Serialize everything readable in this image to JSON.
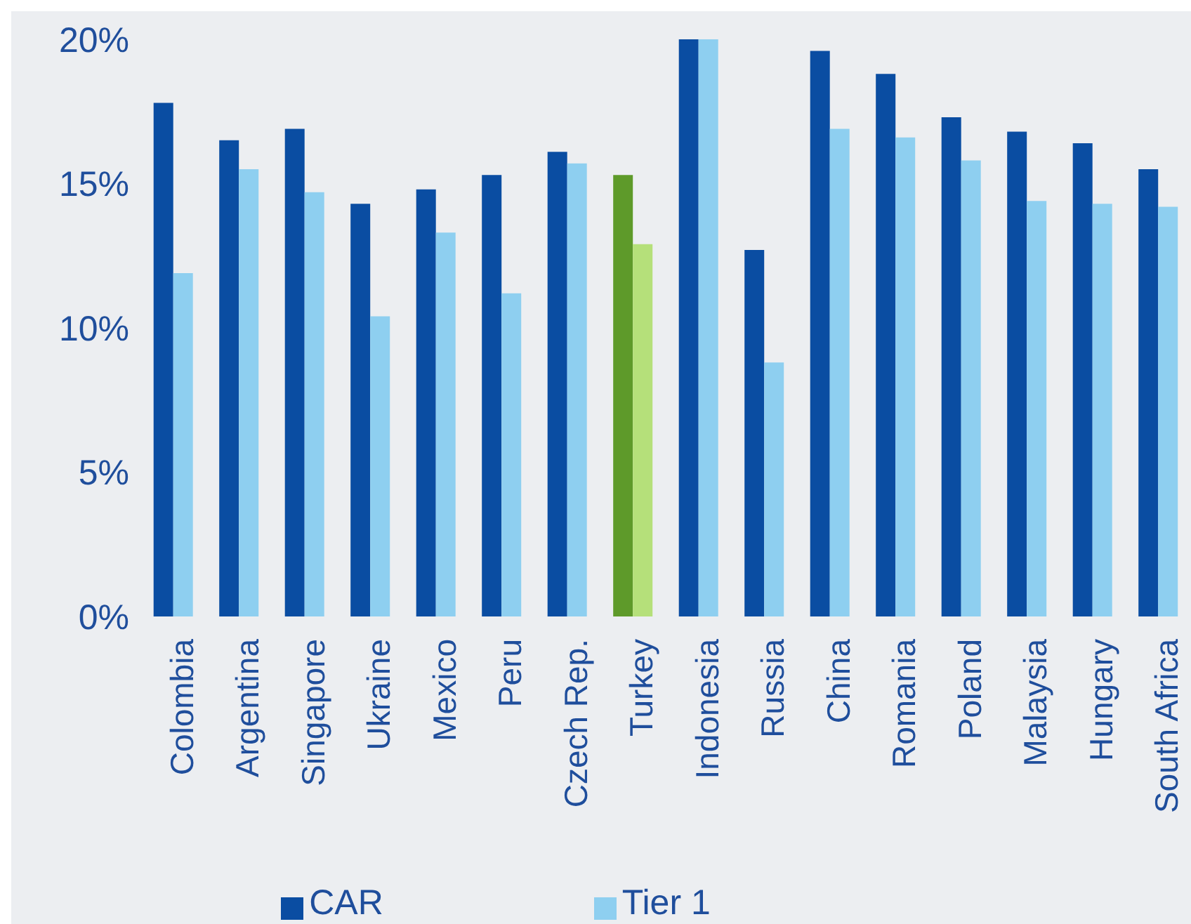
{
  "chart_data": {
    "type": "bar",
    "categories": [
      "Colombia",
      "Argentina",
      "Singapore",
      "Ukraine",
      "Mexico",
      "Peru",
      "Czech Rep.",
      "Turkey",
      "Indonesia",
      "Russia",
      "China",
      "Romania",
      "Poland",
      "Malaysia",
      "Hungary",
      "South Africa"
    ],
    "series": [
      {
        "name": "CAR",
        "color": "#0a4da2",
        "colors": [
          "#0a4da2",
          "#0a4da2",
          "#0a4da2",
          "#0a4da2",
          "#0a4da2",
          "#0a4da2",
          "#0a4da2",
          "#5e9a2a",
          "#0a4da2",
          "#0a4da2",
          "#0a4da2",
          "#0a4da2",
          "#0a4da2",
          "#0a4da2",
          "#0a4da2",
          "#0a4da2"
        ],
        "values": [
          17.8,
          16.5,
          16.9,
          14.3,
          14.8,
          15.3,
          16.1,
          15.3,
          20.0,
          12.7,
          19.6,
          18.8,
          17.3,
          16.8,
          16.4,
          15.5
        ]
      },
      {
        "name": "Tier 1",
        "color": "#8ecff0",
        "colors": [
          "#8ecff0",
          "#8ecff0",
          "#8ecff0",
          "#8ecff0",
          "#8ecff0",
          "#8ecff0",
          "#8ecff0",
          "#b5e07a",
          "#8ecff0",
          "#8ecff0",
          "#8ecff0",
          "#8ecff0",
          "#8ecff0",
          "#8ecff0",
          "#8ecff0",
          "#8ecff0"
        ],
        "values": [
          11.9,
          15.5,
          14.7,
          10.4,
          13.3,
          11.2,
          15.7,
          12.9,
          20.0,
          8.8,
          16.9,
          16.6,
          15.8,
          14.4,
          14.3,
          14.2
        ]
      }
    ],
    "ylim": [
      0,
      20
    ],
    "yticks": [
      {
        "value": 0,
        "label": "0%"
      },
      {
        "value": 5,
        "label": "5%"
      },
      {
        "value": 10,
        "label": "10%"
      },
      {
        "value": 15,
        "label": "15%"
      },
      {
        "value": 20,
        "label": "20%"
      }
    ],
    "grid": false,
    "legend": "bottom"
  }
}
